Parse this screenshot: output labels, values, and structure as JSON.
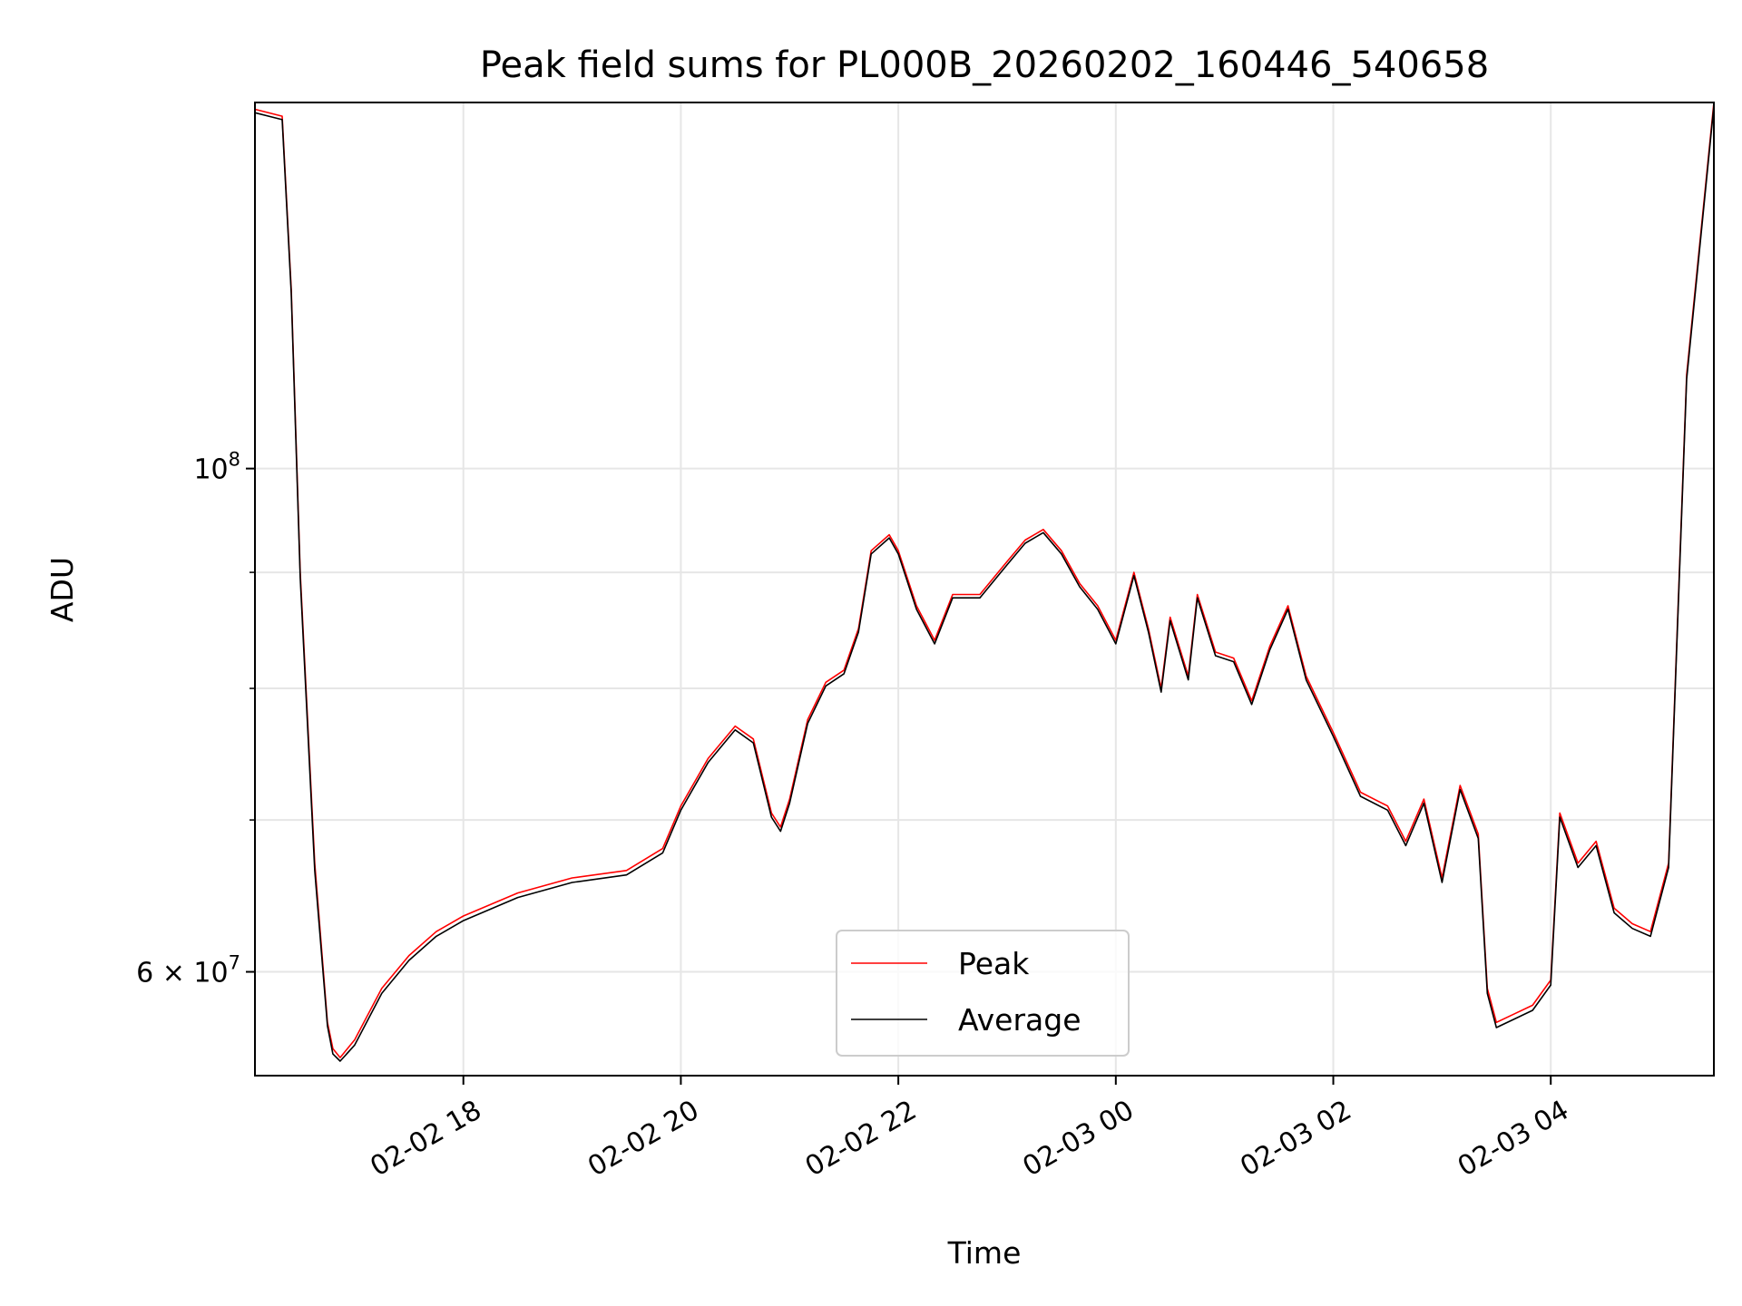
{
  "chart_data": {
    "type": "line",
    "title": "Peak field sums for PL000B_20260202_160446_540658",
    "xlabel": "Time",
    "ylabel": "ADU",
    "yscale": "log",
    "ylim": [
      54000000,
      145000000
    ],
    "xlim": [
      "2026-02-02 16:05",
      "2026-02-03 05:30"
    ],
    "grid": true,
    "legend_position": "lower-center",
    "xticks": [
      {
        "t": "2026-02-02 18:00",
        "label": "02-02 18"
      },
      {
        "t": "2026-02-02 20:00",
        "label": "02-02 20"
      },
      {
        "t": "2026-02-02 22:00",
        "label": "02-02 22"
      },
      {
        "t": "2026-02-03 00:00",
        "label": "02-03 00"
      },
      {
        "t": "2026-02-03 02:00",
        "label": "02-03 02"
      },
      {
        "t": "2026-02-03 04:00",
        "label": "02-03 04"
      }
    ],
    "yticks": [
      {
        "value": 60000000,
        "label_mantissa": "6 × 10",
        "label_exp": "7"
      },
      {
        "value": 100000000,
        "label_mantissa": "10",
        "label_exp": "8"
      }
    ],
    "yminor": [
      70000000,
      80000000,
      90000000
    ],
    "series": [
      {
        "name": "Peak",
        "color": "#ff0000",
        "x": [
          "2026-02-02 16:05",
          "2026-02-02 16:20",
          "2026-02-02 16:25",
          "2026-02-02 16:30",
          "2026-02-02 16:38",
          "2026-02-02 16:45",
          "2026-02-02 16:48",
          "2026-02-02 16:52",
          "2026-02-02 17:00",
          "2026-02-02 17:15",
          "2026-02-02 17:30",
          "2026-02-02 17:45",
          "2026-02-02 18:00",
          "2026-02-02 18:30",
          "2026-02-02 19:00",
          "2026-02-02 19:30",
          "2026-02-02 19:50",
          "2026-02-02 20:00",
          "2026-02-02 20:15",
          "2026-02-02 20:30",
          "2026-02-02 20:40",
          "2026-02-02 20:50",
          "2026-02-02 20:55",
          "2026-02-02 21:00",
          "2026-02-02 21:10",
          "2026-02-02 21:20",
          "2026-02-02 21:30",
          "2026-02-02 21:38",
          "2026-02-02 21:45",
          "2026-02-02 21:55",
          "2026-02-02 22:00",
          "2026-02-02 22:10",
          "2026-02-02 22:20",
          "2026-02-02 22:30",
          "2026-02-02 22:45",
          "2026-02-02 23:00",
          "2026-02-02 23:10",
          "2026-02-02 23:20",
          "2026-02-02 23:30",
          "2026-02-02 23:40",
          "2026-02-02 23:50",
          "2026-02-03 00:00",
          "2026-02-03 00:10",
          "2026-02-03 00:18",
          "2026-02-03 00:25",
          "2026-02-03 00:30",
          "2026-02-03 00:40",
          "2026-02-03 00:45",
          "2026-02-03 00:55",
          "2026-02-03 01:05",
          "2026-02-03 01:15",
          "2026-02-03 01:25",
          "2026-02-03 01:35",
          "2026-02-03 01:45",
          "2026-02-03 02:00",
          "2026-02-03 02:15",
          "2026-02-03 02:30",
          "2026-02-03 02:40",
          "2026-02-03 02:50",
          "2026-02-03 03:00",
          "2026-02-03 03:10",
          "2026-02-03 03:20",
          "2026-02-03 03:25",
          "2026-02-03 03:30",
          "2026-02-03 03:40",
          "2026-02-03 03:50",
          "2026-02-03 04:00",
          "2026-02-03 04:05",
          "2026-02-03 04:15",
          "2026-02-03 04:25",
          "2026-02-03 04:35",
          "2026-02-03 04:45",
          "2026-02-03 04:55",
          "2026-02-03 05:05",
          "2026-02-03 05:15",
          "2026-02-03 05:30"
        ],
        "values": [
          144000000,
          143000000,
          120000000,
          90000000,
          67000000,
          57000000,
          55500000,
          55000000,
          56000000,
          59000000,
          61000000,
          62500000,
          63500000,
          65000000,
          66000000,
          66500000,
          68000000,
          71000000,
          74500000,
          77000000,
          76000000,
          70500000,
          69500000,
          71500000,
          77500000,
          80500000,
          81500000,
          85000000,
          92000000,
          93500000,
          92000000,
          87000000,
          84000000,
          88000000,
          88000000,
          91000000,
          93000000,
          94000000,
          92000000,
          89000000,
          87000000,
          84000000,
          90000000,
          85000000,
          80000000,
          86000000,
          81000000,
          88000000,
          83000000,
          82500000,
          79000000,
          83500000,
          87000000,
          81000000,
          76500000,
          72000000,
          71000000,
          68500000,
          71500000,
          66000000,
          72500000,
          69000000,
          59000000,
          57000000,
          57500000,
          58000000,
          59500000,
          70500000,
          67000000,
          68500000,
          64000000,
          63000000,
          62500000,
          67000000,
          110000000,
          145000000
        ]
      },
      {
        "name": "Average",
        "color": "#000000",
        "x": [
          "2026-02-02 16:05",
          "2026-02-02 16:20",
          "2026-02-02 16:25",
          "2026-02-02 16:30",
          "2026-02-02 16:38",
          "2026-02-02 16:45",
          "2026-02-02 16:48",
          "2026-02-02 16:52",
          "2026-02-02 17:00",
          "2026-02-02 17:15",
          "2026-02-02 17:30",
          "2026-02-02 17:45",
          "2026-02-02 18:00",
          "2026-02-02 18:30",
          "2026-02-02 19:00",
          "2026-02-02 19:30",
          "2026-02-02 19:50",
          "2026-02-02 20:00",
          "2026-02-02 20:15",
          "2026-02-02 20:30",
          "2026-02-02 20:40",
          "2026-02-02 20:50",
          "2026-02-02 20:55",
          "2026-02-02 21:00",
          "2026-02-02 21:10",
          "2026-02-02 21:20",
          "2026-02-02 21:30",
          "2026-02-02 21:38",
          "2026-02-02 21:45",
          "2026-02-02 21:55",
          "2026-02-02 22:00",
          "2026-02-02 22:10",
          "2026-02-02 22:20",
          "2026-02-02 22:30",
          "2026-02-02 22:45",
          "2026-02-02 23:00",
          "2026-02-02 23:10",
          "2026-02-02 23:20",
          "2026-02-02 23:30",
          "2026-02-02 23:40",
          "2026-02-02 23:50",
          "2026-02-03 00:00",
          "2026-02-03 00:10",
          "2026-02-03 00:18",
          "2026-02-03 00:25",
          "2026-02-03 00:30",
          "2026-02-03 00:40",
          "2026-02-03 00:45",
          "2026-02-03 00:55",
          "2026-02-03 01:05",
          "2026-02-03 01:15",
          "2026-02-03 01:25",
          "2026-02-03 01:35",
          "2026-02-03 01:45",
          "2026-02-03 02:00",
          "2026-02-03 02:15",
          "2026-02-03 02:30",
          "2026-02-03 02:40",
          "2026-02-03 02:50",
          "2026-02-03 03:00",
          "2026-02-03 03:10",
          "2026-02-03 03:20",
          "2026-02-03 03:25",
          "2026-02-03 03:30",
          "2026-02-03 03:40",
          "2026-02-03 03:50",
          "2026-02-03 04:00",
          "2026-02-03 04:05",
          "2026-02-03 04:15",
          "2026-02-03 04:25",
          "2026-02-03 04:35",
          "2026-02-03 04:45",
          "2026-02-03 04:55",
          "2026-02-03 05:05",
          "2026-02-03 05:15",
          "2026-02-03 05:30"
        ],
        "values": [
          143500000,
          142500000,
          119500000,
          89500000,
          66500000,
          56800000,
          55200000,
          54800000,
          55700000,
          58700000,
          60700000,
          62200000,
          63200000,
          64700000,
          65700000,
          66200000,
          67700000,
          70700000,
          74200000,
          76700000,
          75700000,
          70200000,
          69200000,
          71200000,
          77200000,
          80200000,
          81200000,
          84700000,
          91700000,
          93200000,
          91700000,
          86700000,
          83700000,
          87700000,
          87700000,
          90700000,
          92700000,
          93700000,
          91700000,
          88700000,
          86700000,
          83700000,
          89700000,
          84700000,
          79700000,
          85700000,
          80700000,
          87700000,
          82700000,
          82200000,
          78700000,
          83200000,
          86700000,
          80700000,
          76200000,
          71700000,
          70700000,
          68200000,
          71200000,
          65700000,
          72200000,
          68700000,
          58700000,
          56700000,
          57200000,
          57700000,
          59200000,
          70200000,
          66700000,
          68200000,
          63700000,
          62700000,
          62200000,
          66700000,
          109500000,
          144500000
        ]
      }
    ]
  }
}
